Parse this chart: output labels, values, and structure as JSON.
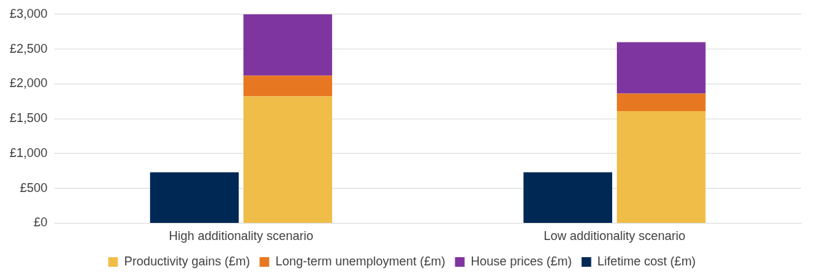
{
  "chart_data": {
    "type": "bar",
    "categories": [
      "High additionality scenario",
      "Low additionality scenario"
    ],
    "series": [
      {
        "name": "Productivity gains (£m)",
        "color": "#f0be48",
        "values": [
          1820,
          1610
        ],
        "base": [
          0,
          0
        ]
      },
      {
        "name": "Long-term unemployment (£m)",
        "color": "#e87722",
        "values": [
          300,
          250
        ],
        "base": [
          1820,
          1610
        ]
      },
      {
        "name": "House prices (£m)",
        "color": "#7f35a0",
        "values": [
          880,
          740
        ],
        "base": [
          2120,
          1860
        ]
      },
      {
        "name": "Lifetime cost (£m)",
        "color": "#002855",
        "values": [
          730,
          730
        ]
      }
    ],
    "ylim": [
      0,
      3000
    ],
    "yticks": [
      {
        "value": 0,
        "label": "£0"
      },
      {
        "value": 500,
        "label": "£500"
      },
      {
        "value": 1000,
        "label": "£1,000"
      },
      {
        "value": 1500,
        "label": "£1,500"
      },
      {
        "value": 2000,
        "label": "£2,000"
      },
      {
        "value": 2500,
        "label": "£2,500"
      },
      {
        "value": 3000,
        "label": "£3,000"
      }
    ],
    "grid": "y",
    "legend": "bottom"
  }
}
